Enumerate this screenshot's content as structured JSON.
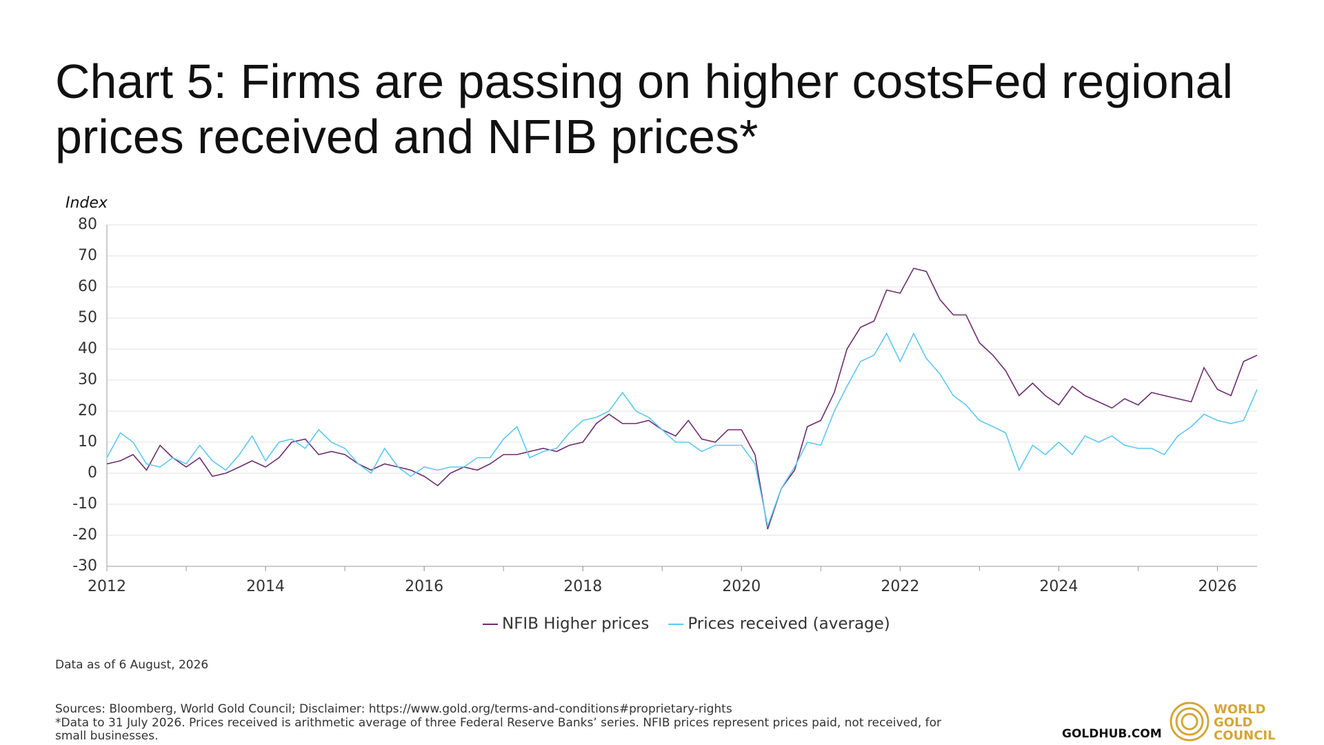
{
  "chart_data": {
    "type": "line",
    "title": "Chart 5: Firms are passing on higher costsFed regional prices received and NFIB prices*",
    "y_label": "Index",
    "x": [
      2012,
      2012.17,
      2012.33,
      2012.5,
      2012.67,
      2012.83,
      2013,
      2013.17,
      2013.33,
      2013.5,
      2013.67,
      2013.83,
      2014,
      2014.17,
      2014.33,
      2014.5,
      2014.67,
      2014.83,
      2015,
      2015.17,
      2015.33,
      2015.5,
      2015.67,
      2015.83,
      2016,
      2016.17,
      2016.33,
      2016.5,
      2016.67,
      2016.83,
      2017,
      2017.17,
      2017.33,
      2017.5,
      2017.67,
      2017.83,
      2018,
      2018.17,
      2018.33,
      2018.5,
      2018.67,
      2018.83,
      2019,
      2019.17,
      2019.33,
      2019.5,
      2019.67,
      2019.83,
      2020,
      2020.17,
      2020.33,
      2020.5,
      2020.67,
      2020.83,
      2021,
      2021.17,
      2021.33,
      2021.5,
      2021.67,
      2021.83,
      2022,
      2022.17,
      2022.33,
      2022.5,
      2022.67,
      2022.83,
      2023,
      2023.17,
      2023.33,
      2023.5,
      2023.67,
      2023.83,
      2024,
      2024.17,
      2024.33,
      2024.5,
      2024.67,
      2024.83,
      2025,
      2025.17,
      2025.33,
      2025.5,
      2025.67,
      2025.83,
      2026,
      2026.17,
      2026.33,
      2026.5
    ],
    "series": [
      {
        "name": "NFIB Higher prices",
        "color": "#6b2c6e",
        "values": [
          3,
          4,
          6,
          1,
          9,
          5,
          2,
          5,
          -1,
          0,
          2,
          4,
          2,
          5,
          10,
          11,
          6,
          7,
          6,
          3,
          1,
          3,
          2,
          1,
          -1,
          -4,
          0,
          2,
          1,
          3,
          6,
          6,
          7,
          8,
          7,
          9,
          10,
          16,
          19,
          16,
          16,
          17,
          14,
          12,
          17,
          11,
          10,
          14,
          14,
          6,
          -18,
          -5,
          1,
          15,
          17,
          26,
          40,
          47,
          49,
          59,
          58,
          66,
          65,
          56,
          51,
          51,
          42,
          38,
          33,
          25,
          29,
          25,
          22,
          28,
          25,
          23,
          21,
          24,
          22,
          26,
          25,
          24,
          23,
          34,
          27,
          25,
          36,
          38
        ]
      },
      {
        "name": "Prices received (average)",
        "color": "#5bc8f0",
        "values": [
          5,
          13,
          10,
          3,
          2,
          5,
          3,
          9,
          4,
          1,
          6,
          12,
          4,
          10,
          11,
          8,
          14,
          10,
          8,
          3,
          0,
          8,
          2,
          -1,
          2,
          1,
          2,
          2,
          5,
          5,
          11,
          15,
          5,
          7,
          8,
          13,
          17,
          18,
          20,
          26,
          20,
          18,
          14,
          10,
          10,
          7,
          9,
          9,
          9,
          3,
          -17,
          -5,
          2,
          10,
          9,
          20,
          28,
          36,
          38,
          45,
          36,
          45,
          37,
          32,
          25,
          22,
          17,
          15,
          13,
          1,
          9,
          6,
          10,
          6,
          12,
          10,
          12,
          9,
          8,
          8,
          6,
          12,
          15,
          19,
          17,
          16,
          17,
          27
        ]
      }
    ],
    "xlim": [
      2012,
      2026.5
    ],
    "xticks": [
      2012,
      2014,
      2016,
      2018,
      2020,
      2022,
      2024,
      2026
    ],
    "ylim": [
      -30,
      80
    ],
    "yticks": [
      -30,
      -20,
      -10,
      0,
      10,
      20,
      30,
      40,
      50,
      60,
      70,
      80
    ],
    "grid": true
  },
  "footer": {
    "data_note": "Data as of 6 August, 2026",
    "sources": "Sources: Bloomberg, World Gold Council; Disclaimer: https://www.gold.org/terms-and-conditions#proprietary-rights",
    "footnote": "*Data to 31 July 2026. Prices received is arithmetic average of three Federal Reserve Banks’ series. NFIB prices represent prices paid, not received, for small businesses.",
    "site": "GOLDHUB.COM",
    "logo": [
      "WORLD",
      "GOLD",
      "COUNCIL"
    ]
  }
}
